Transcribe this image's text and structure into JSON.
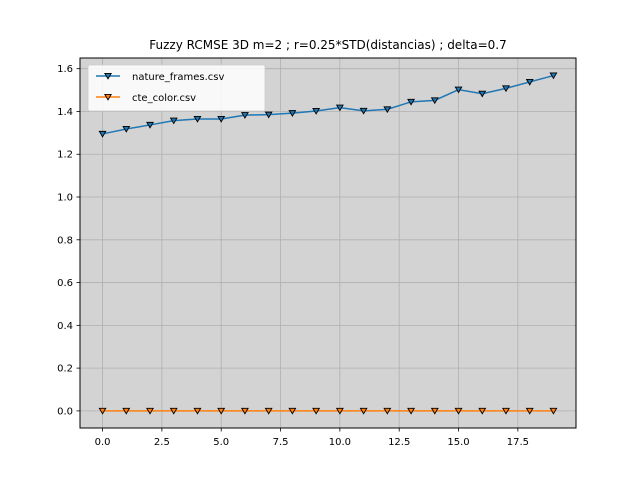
{
  "chart_data": {
    "type": "line",
    "title": "Fuzzy RCMSE 3D m=2 ; r=0.25*STD(distancias) ; delta=0.7",
    "xlabel": "",
    "ylabel": "",
    "xlim": [
      -0.95,
      19.95
    ],
    "ylim": [
      -0.08,
      1.65
    ],
    "x_ticks": [
      0.0,
      2.5,
      5.0,
      7.5,
      10.0,
      12.5,
      15.0,
      17.5
    ],
    "x_tick_labels": [
      "0.0",
      "2.5",
      "5.0",
      "7.5",
      "10.0",
      "12.5",
      "15.0",
      "17.5"
    ],
    "y_ticks": [
      0.0,
      0.2,
      0.4,
      0.6,
      0.8,
      1.0,
      1.2,
      1.4,
      1.6
    ],
    "y_tick_labels": [
      "0.0",
      "0.2",
      "0.4",
      "0.6",
      "0.8",
      "1.0",
      "1.2",
      "1.4",
      "1.6"
    ],
    "grid": true,
    "background": "#d3d3d3",
    "legend_position": "top-left",
    "marker": "triangle-down",
    "x": [
      0,
      1,
      2,
      3,
      4,
      5,
      6,
      7,
      8,
      9,
      10,
      11,
      12,
      13,
      14,
      15,
      16,
      17,
      18,
      19
    ],
    "series": [
      {
        "name": "nature_frames.csv",
        "color": "#1f77b4",
        "values": [
          1.295,
          1.318,
          1.337,
          1.357,
          1.365,
          1.365,
          1.383,
          1.385,
          1.392,
          1.402,
          1.418,
          1.403,
          1.41,
          1.445,
          1.452,
          1.502,
          1.483,
          1.508,
          1.538,
          1.568
        ]
      },
      {
        "name": "cte_color.csv",
        "color": "#ff7f0e",
        "values": [
          0,
          0,
          0,
          0,
          0,
          0,
          0,
          0,
          0,
          0,
          0,
          0,
          0,
          0,
          0,
          0,
          0,
          0,
          0,
          0
        ]
      }
    ]
  }
}
